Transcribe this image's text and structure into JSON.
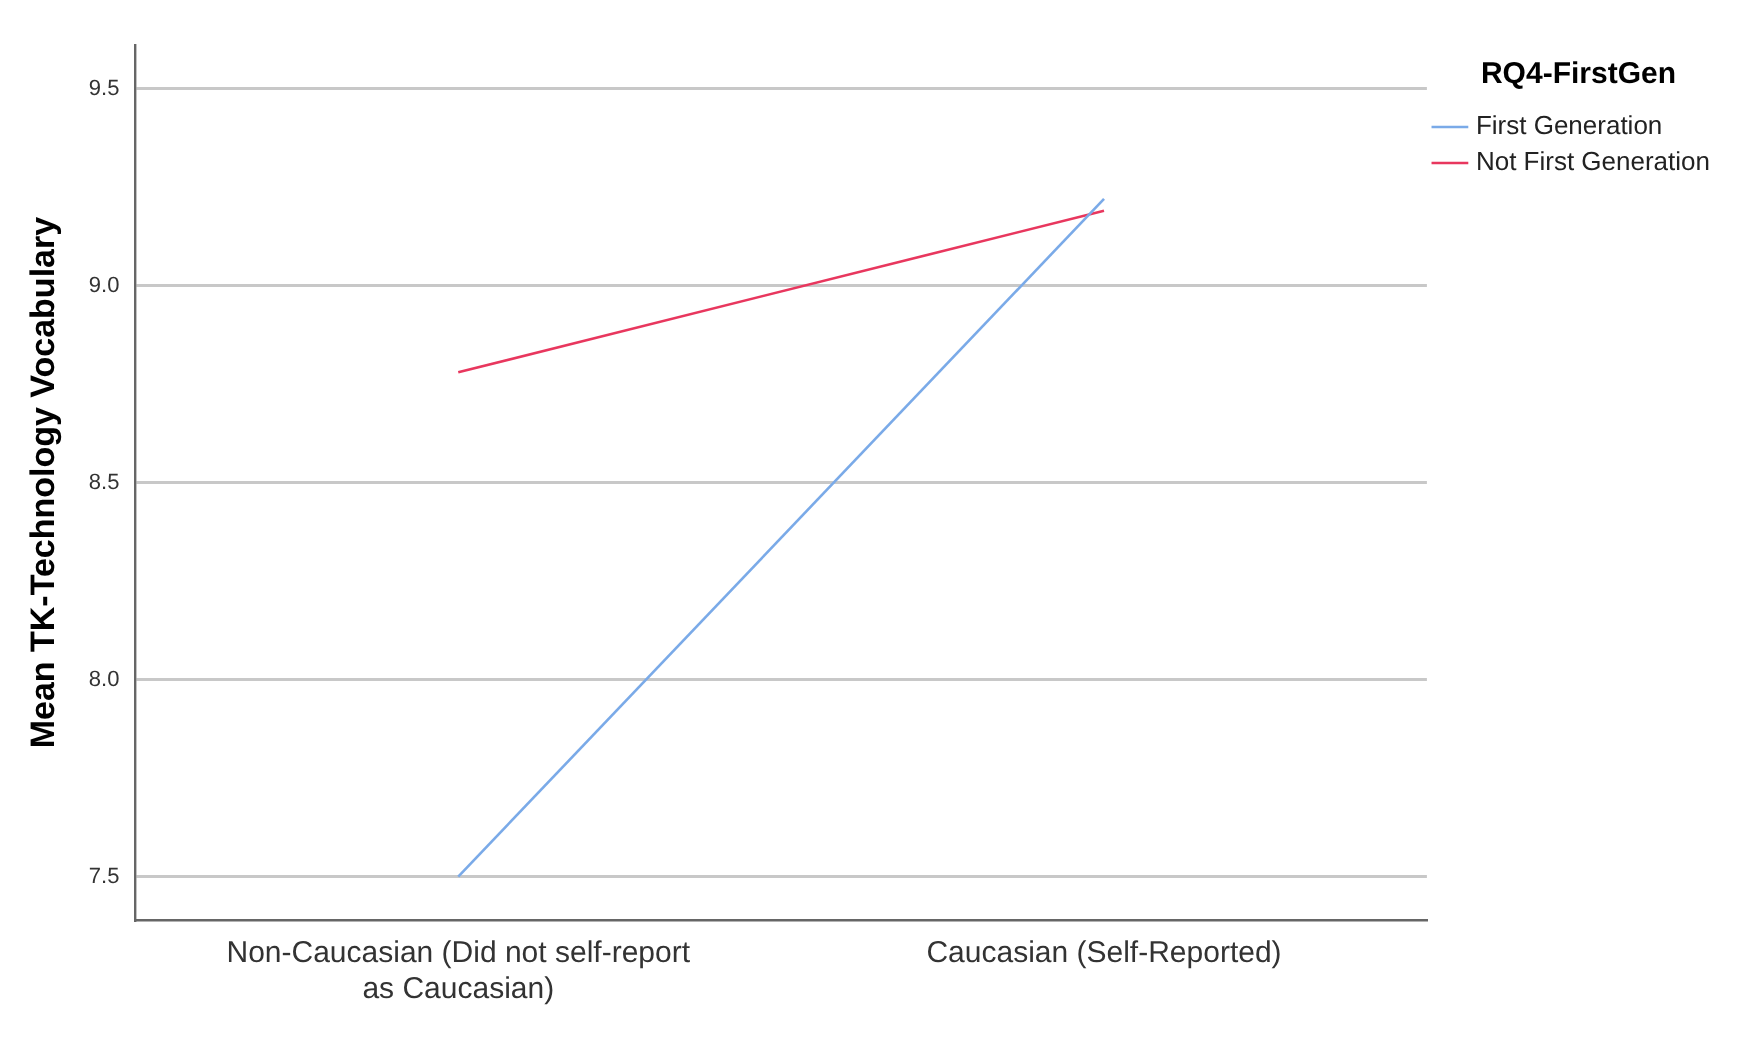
{
  "chart_data": {
    "type": "line",
    "ylabel": "Mean TK-Technology Vocabulary",
    "legend_title": "RQ4-FirstGen",
    "categories": [
      "Non-Caucasian (Did not self-report as Caucasian)",
      "Caucasian (Self-Reported)"
    ],
    "series": [
      {
        "name": "First Generation",
        "color": "#7aaae8",
        "values": [
          7.5,
          9.22
        ]
      },
      {
        "name": "Not First Generation",
        "color": "#e8375e",
        "values": [
          8.78,
          9.19
        ]
      }
    ],
    "ylim": [
      7.39,
      9.61
    ],
    "yticks": [
      {
        "value": 7.5,
        "label": "7.5"
      },
      {
        "value": 8.0,
        "label": "8.0"
      },
      {
        "value": 8.5,
        "label": "8.5"
      },
      {
        "value": 9.0,
        "label": "9.0"
      },
      {
        "value": 9.5,
        "label": "9.5"
      }
    ],
    "grid": "y",
    "legend": "top right",
    "marker": "none",
    "line_style": "solid"
  }
}
